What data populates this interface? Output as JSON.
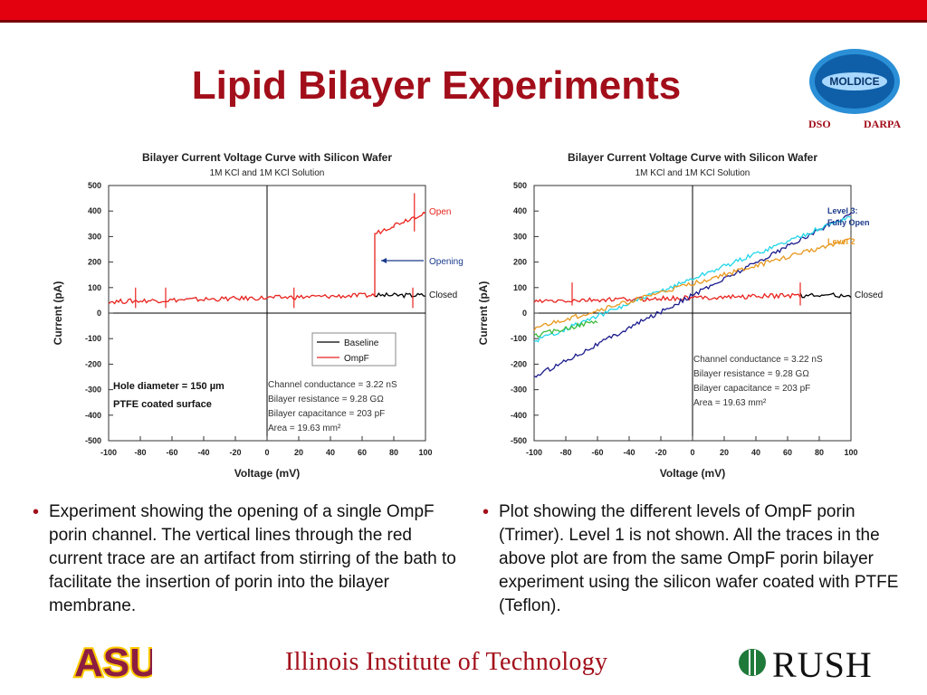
{
  "slide": {
    "title": "Lipid Bilayer Experiments",
    "sponsors": [
      "DSO",
      "DARPA"
    ],
    "logo_text": "MOLDICE",
    "footer": {
      "asu": "ASU",
      "iit": "Illinois Institute of Technology",
      "rush": "RUSH"
    }
  },
  "bullets": [
    "Experiment showing the opening of a single OmpF porin channel. The vertical lines through the red current trace are an artifact from stirring of the bath to facilitate the insertion of porin into the bilayer membrane.",
    "Plot showing the different levels of OmpF porin (Trimer). Level 1 is not shown. All the traces in the above plot are from the same OmpF porin bilayer experiment using the silicon wafer coated with PTFE (Teflon)."
  ],
  "chart_data": [
    {
      "type": "line",
      "title": "Bilayer Current Voltage Curve with Silicon Wafer",
      "subtitle": "1M KCl and 1M KCl Solution",
      "xlabel": "Voltage (mV)",
      "ylabel": "Current (pA)",
      "xlim": [
        -100,
        100
      ],
      "ylim": [
        -500,
        500
      ],
      "xticks": [
        "-100",
        "-80",
        "-60",
        "-40",
        "-20",
        "0",
        "20",
        "40",
        "60",
        "80",
        "100"
      ],
      "yticks": [
        "500",
        "400",
        "300",
        "200",
        "100",
        "0",
        "-100",
        "-200",
        "-300",
        "-400",
        "-500"
      ],
      "legend": [
        "Baseline",
        "OmpF"
      ],
      "annotations": [
        "Open",
        "Opening",
        "Closed"
      ],
      "notes": [
        "Hole diameter = 150 µm",
        "PTFE coated surface"
      ],
      "stats": [
        "Channel conductance = 3.22 nS",
        "Bilayer resistance = 9.28 GΩ",
        "Bilayer capacitance = 203 pF",
        "Area = 19.63 mm²"
      ],
      "series": [
        {
          "name": "Baseline",
          "color": "#000000",
          "x": [
            68,
            100
          ],
          "y": [
            70,
            70
          ]
        },
        {
          "name": "OmpF",
          "color": "#e8231e",
          "x": [
            -100,
            68,
            68,
            80,
            100
          ],
          "y": [
            45,
            70,
            310,
            345,
            395
          ]
        }
      ]
    },
    {
      "type": "line",
      "title": "Bilayer Current Voltage Curve with Silicon Wafer",
      "subtitle": "1M KCl and 1M KCl Solution",
      "xlabel": "Voltage (mV)",
      "ylabel": "Current (pA)",
      "xlim": [
        -100,
        100
      ],
      "ylim": [
        -500,
        500
      ],
      "xticks": [
        "-100",
        "-80",
        "-60",
        "-40",
        "-20",
        "0",
        "20",
        "40",
        "60",
        "80",
        "100"
      ],
      "yticks": [
        "500",
        "400",
        "300",
        "200",
        "100",
        "0",
        "-100",
        "-200",
        "-300",
        "-400",
        "-500"
      ],
      "annotations": [
        "Level 3:",
        "Fully Open",
        "Level 2",
        "Closed"
      ],
      "stats": [
        "Channel conductance = 3.22 nS",
        "Bilayer resistance = 9.28 GΩ",
        "Bilayer capacitance = 203 pF",
        "Area = 19.63 mm²"
      ],
      "series": [
        {
          "name": "Closed",
          "color": "#e8231e",
          "x": [
            -100,
            68
          ],
          "y": [
            45,
            70
          ]
        },
        {
          "name": "Closed",
          "color": "#000000",
          "x": [
            68,
            100
          ],
          "y": [
            70,
            70
          ]
        },
        {
          "name": "Level 3: Fully Open",
          "color": "#1a1a8c",
          "x": [
            -100,
            100
          ],
          "y": [
            -250,
            390
          ]
        },
        {
          "name": "Level 3: Fully Open",
          "color": "#22d6e8",
          "x": [
            -100,
            100
          ],
          "y": [
            -110,
            380
          ]
        },
        {
          "name": "Level 2",
          "color": "#e8981e",
          "x": [
            -100,
            100
          ],
          "y": [
            -60,
            290
          ]
        },
        {
          "name": "Level 2",
          "color": "#3dbb3d",
          "x": [
            -100,
            -60
          ],
          "y": [
            -90,
            -30
          ]
        }
      ]
    }
  ]
}
